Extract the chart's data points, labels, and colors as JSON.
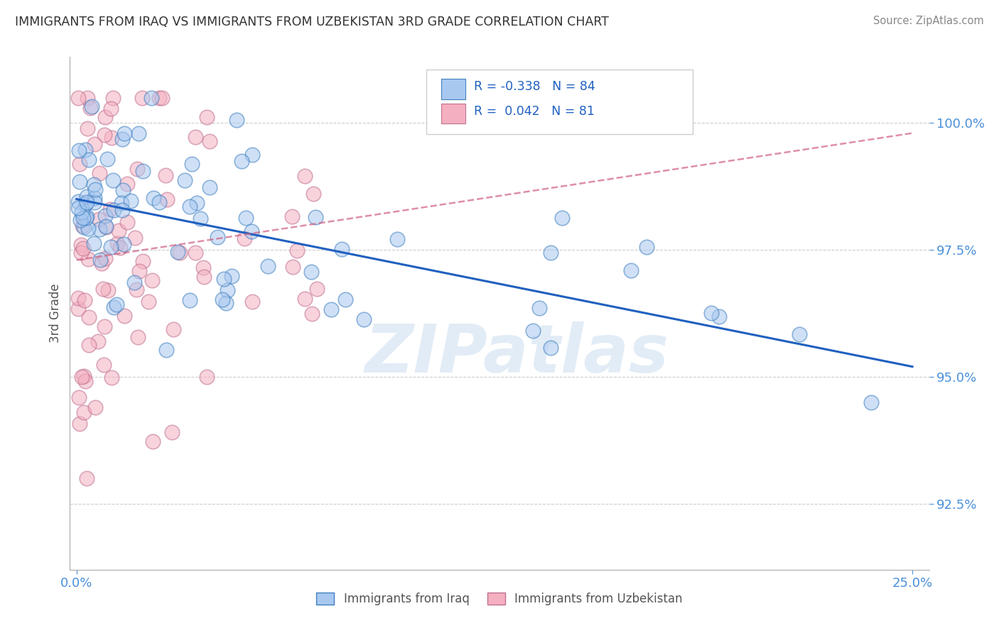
{
  "title": "IMMIGRANTS FROM IRAQ VS IMMIGRANTS FROM UZBEKISTAN 3RD GRADE CORRELATION CHART",
  "source": "Source: ZipAtlas.com",
  "ylabel": "3rd Grade",
  "yticks": [
    "92.5%",
    "95.0%",
    "97.5%",
    "100.0%"
  ],
  "ytick_vals": [
    92.5,
    95.0,
    97.5,
    100.0
  ],
  "ymin": 91.2,
  "ymax": 101.3,
  "xmin": -0.2,
  "xmax": 25.5,
  "color_iraq": "#a8c8f0",
  "color_uzbekistan": "#f4b0c0",
  "trendline_iraq_color": "#2060c0",
  "trendline_uzbek_color": "#d06080",
  "iraq_trend_x0": 0.0,
  "iraq_trend_y0": 98.5,
  "iraq_trend_x1": 25.0,
  "iraq_trend_y1": 95.2,
  "uzbek_trend_x0": 0.0,
  "uzbek_trend_y0": 97.3,
  "uzbek_trend_x1": 25.0,
  "uzbek_trend_y1": 99.8,
  "watermark_text": "ZIPatlas",
  "legend_iraq_text": "R = -0.338   N = 84",
  "legend_uzbek_text": "R =  0.042   N = 81",
  "bottom_legend_iraq": "Immigrants from Iraq",
  "bottom_legend_uzbek": "Immigrants from Uzbekistan"
}
